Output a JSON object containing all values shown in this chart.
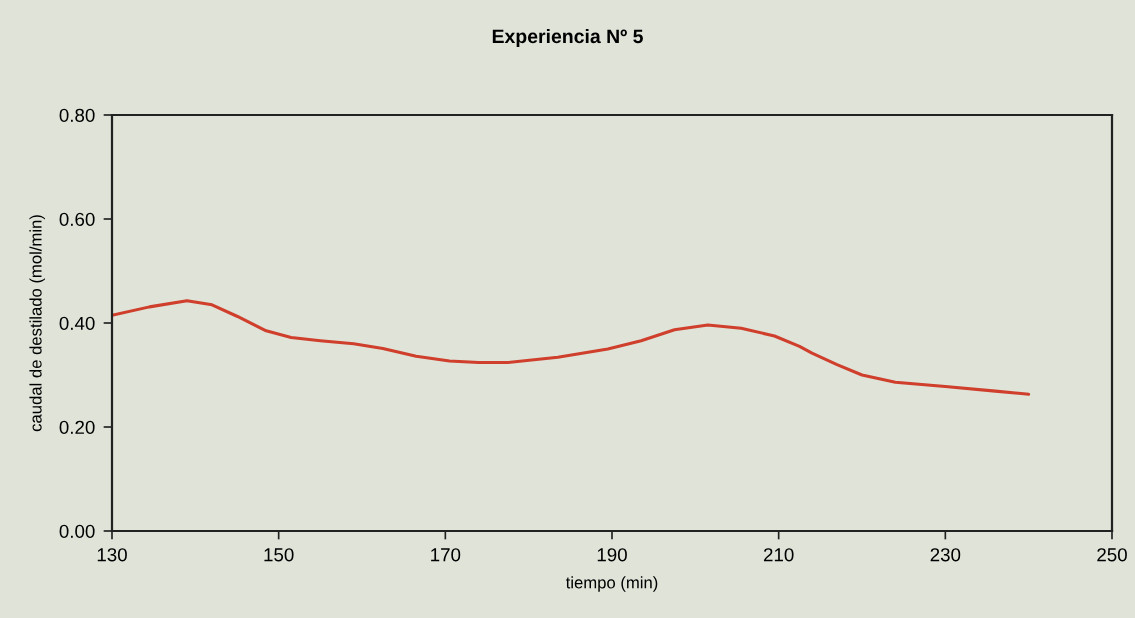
{
  "chart_data": {
    "type": "line",
    "title": "Experiencia Nº 5",
    "xlabel": "tiempo (min)",
    "ylabel": "caudal de destilado (mol/min)",
    "x": [
      130,
      134.5,
      139,
      142,
      145,
      148.5,
      151.5,
      155,
      159,
      162.5,
      166.5,
      170.5,
      174,
      177.5,
      183.5,
      189.5,
      193.5,
      197.5,
      201.5,
      205.5,
      209.5,
      212.5,
      214,
      217,
      220,
      224,
      230,
      236,
      240
    ],
    "series": [
      {
        "color": "#cf3f2c",
        "values": [
          0.415,
          0.431,
          0.443,
          0.435,
          0.413,
          0.385,
          0.372,
          0.366,
          0.36,
          0.351,
          0.336,
          0.327,
          0.324,
          0.324,
          0.334,
          0.35,
          0.366,
          0.387,
          0.396,
          0.39,
          0.375,
          0.355,
          0.342,
          0.32,
          0.3,
          0.286,
          0.278,
          0.269,
          0.263
        ]
      }
    ],
    "xlim": [
      130,
      250
    ],
    "ylim": [
      0,
      0.8
    ],
    "xticks": [
      130,
      150,
      170,
      190,
      210,
      230,
      250
    ],
    "yticks": [
      {
        "value": 0,
        "label": "0.00"
      },
      {
        "value": 0.2,
        "label": "0.20"
      },
      {
        "value": 0.4,
        "label": "0.40"
      },
      {
        "value": 0.6,
        "label": "0.60"
      },
      {
        "value": 0.8,
        "label": "0.80"
      }
    ]
  }
}
